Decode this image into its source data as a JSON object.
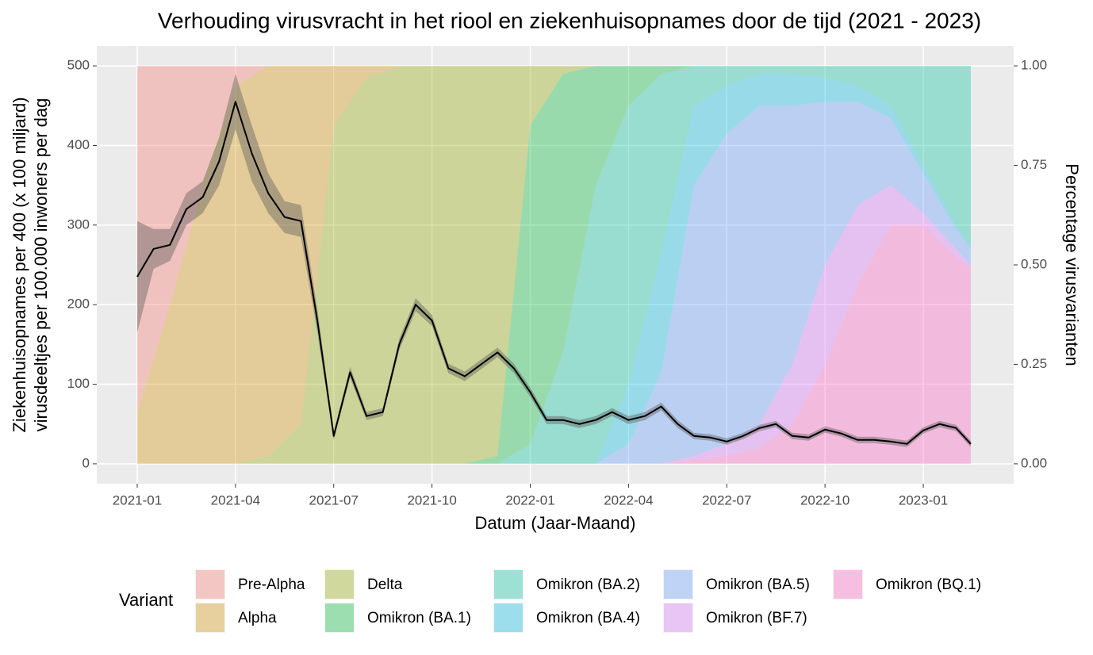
{
  "chart_data": [
    {
      "type": "stacked-area",
      "title": "Verhouding virusvracht in het riool en ziekenhuisopnames door de tijd (2021 - 2023)",
      "xlabel": "Datum (Jaar-Maand)",
      "ylabel": [
        "Ziekenhuisopnames per 400 (x 100 miljard)",
        "virusdeeltjes per 100.000 inwoners per dag"
      ],
      "y2label": "Percentage virusvarianten",
      "legend_title": "Variant",
      "xlim": [
        -1.235,
        26.76
      ],
      "xticks": [
        {
          "value": 0,
          "label": "2021-01"
        },
        {
          "value": 3,
          "label": "2021-04"
        },
        {
          "value": 6,
          "label": "2021-07"
        },
        {
          "value": 9,
          "label": "2021-10"
        },
        {
          "value": 12,
          "label": "2022-01"
        },
        {
          "value": 15,
          "label": "2022-04"
        },
        {
          "value": 18,
          "label": "2022-07"
        },
        {
          "value": 21,
          "label": "2022-10"
        },
        {
          "value": 24,
          "label": "2023-01"
        }
      ],
      "ylim": [
        -25,
        525
      ],
      "yticks": [
        0,
        100,
        200,
        300,
        400,
        500
      ],
      "y2lim": [
        -0.05,
        1.05
      ],
      "y2ticks": [
        {
          "value": 0,
          "label": "0.00"
        },
        {
          "value": 0.25,
          "label": "0.25"
        },
        {
          "value": 0.5,
          "label": "0.50"
        },
        {
          "value": 0.75,
          "label": "0.75"
        },
        {
          "value": 1,
          "label": "1.00"
        }
      ],
      "grid": true,
      "x": [
        0,
        1,
        2,
        3,
        4,
        5,
        6,
        7,
        8,
        9,
        10,
        11,
        12,
        13,
        14,
        15,
        16,
        17,
        18,
        19,
        20,
        21,
        22,
        23,
        24,
        25,
        25.45
      ],
      "series": [
        {
          "name": "Pre-Alpha",
          "color": "#F8766D",
          "axis": "y2",
          "values": [
            0.87,
            0.6,
            0.3,
            0.05,
            0,
            0,
            0,
            0,
            0,
            0,
            0,
            0,
            0,
            0,
            0,
            0,
            0,
            0,
            0,
            0,
            0,
            0,
            0,
            0,
            0,
            0,
            0
          ]
        },
        {
          "name": "Alpha",
          "color": "#D39200",
          "axis": "y2",
          "values": [
            0.13,
            0.4,
            0.7,
            0.95,
            0.98,
            0.9,
            0.15,
            0.03,
            0,
            0,
            0,
            0,
            0,
            0,
            0,
            0,
            0,
            0,
            0,
            0,
            0,
            0,
            0,
            0,
            0,
            0,
            0
          ]
        },
        {
          "name": "Delta",
          "color": "#93AA00",
          "axis": "y2",
          "values": [
            0,
            0,
            0,
            0,
            0.02,
            0.1,
            0.85,
            0.97,
            1,
            1,
            1,
            0.98,
            0.15,
            0.02,
            0,
            0,
            0,
            0,
            0,
            0,
            0,
            0,
            0,
            0,
            0,
            0,
            0
          ]
        },
        {
          "name": "Omikron (BA.1)",
          "color": "#00BA38",
          "axis": "y2",
          "values": [
            0,
            0,
            0,
            0,
            0,
            0,
            0,
            0,
            0,
            0,
            0,
            0.02,
            0.8,
            0.7,
            0.3,
            0.1,
            0.02,
            0,
            0,
            0,
            0,
            0,
            0,
            0,
            0,
            0,
            0
          ]
        },
        {
          "name": "Omikron (BA.2)",
          "color": "#00C19F",
          "axis": "y2",
          "values": [
            0,
            0,
            0,
            0,
            0,
            0,
            0,
            0,
            0,
            0,
            0,
            0,
            0.05,
            0.28,
            0.7,
            0.7,
            0.45,
            0.1,
            0.05,
            0.02,
            0.02,
            0.03,
            0.05,
            0.1,
            0.25,
            0.4,
            0.45
          ]
        },
        {
          "name": "Omikron (BA.4)",
          "color": "#00B9E3",
          "axis": "y2",
          "values": [
            0,
            0,
            0,
            0,
            0,
            0,
            0,
            0,
            0,
            0,
            0,
            0,
            0,
            0,
            0,
            0.15,
            0.3,
            0.2,
            0.12,
            0.08,
            0.08,
            0.06,
            0.04,
            0.03,
            0.02,
            0.01,
            0.01
          ]
        },
        {
          "name": "Omikron (BA.5)",
          "color": "#619CFF",
          "axis": "y2",
          "values": [
            0,
            0,
            0,
            0,
            0,
            0,
            0,
            0,
            0,
            0,
            0,
            0,
            0,
            0,
            0,
            0.05,
            0.23,
            0.68,
            0.78,
            0.8,
            0.65,
            0.41,
            0.26,
            0.17,
            0.1,
            0.05,
            0.04
          ]
        },
        {
          "name": "Omikron (BF.7)",
          "color": "#DB72FB",
          "axis": "y2",
          "values": [
            0,
            0,
            0,
            0,
            0,
            0,
            0,
            0,
            0,
            0,
            0,
            0,
            0,
            0,
            0,
            0,
            0,
            0.01,
            0.03,
            0.06,
            0.15,
            0.25,
            0.2,
            0.1,
            0.03,
            0.02,
            0.01
          ]
        },
        {
          "name": "Omikron (BQ.1)",
          "color": "#FF61C3",
          "axis": "y2",
          "values": [
            0,
            0,
            0,
            0,
            0,
            0,
            0,
            0,
            0,
            0,
            0,
            0,
            0,
            0,
            0,
            0,
            0,
            0.01,
            0.02,
            0.04,
            0.1,
            0.25,
            0.45,
            0.6,
            0.6,
            0.52,
            0.49
          ]
        }
      ]
    },
    {
      "type": "line",
      "color": "#000000",
      "ribbon_color": "#555555",
      "x": [
        0,
        0.5,
        1,
        1.5,
        2,
        2.5,
        3,
        3.5,
        4,
        4.5,
        5,
        5.5,
        6,
        6.5,
        7,
        7.5,
        8,
        8.5,
        9,
        9.5,
        10,
        10.5,
        11,
        11.5,
        12,
        12.5,
        13,
        13.5,
        14,
        14.5,
        15,
        15.5,
        16,
        16.5,
        17,
        17.5,
        18,
        18.5,
        19,
        19.5,
        20,
        20.5,
        21,
        21.5,
        22,
        22.5,
        23,
        23.5,
        24,
        24.5,
        25,
        25.45
      ],
      "values": [
        235,
        270,
        275,
        320,
        335,
        380,
        455,
        390,
        340,
        310,
        305,
        180,
        35,
        115,
        60,
        65,
        150,
        200,
        180,
        120,
        110,
        125,
        140,
        120,
        90,
        55,
        55,
        50,
        55,
        65,
        55,
        60,
        72,
        50,
        35,
        33,
        28,
        35,
        45,
        50,
        35,
        33,
        43,
        38,
        30,
        30,
        28,
        25,
        42,
        50,
        45,
        25
      ],
      "lower": [
        165,
        245,
        255,
        300,
        315,
        350,
        420,
        355,
        315,
        290,
        285,
        165,
        30,
        108,
        55,
        60,
        143,
        192,
        173,
        114,
        104,
        119,
        134,
        114,
        84,
        50,
        50,
        45,
        50,
        60,
        50,
        55,
        67,
        45,
        31,
        29,
        24,
        31,
        41,
        46,
        31,
        29,
        39,
        34,
        26,
        26,
        24,
        21,
        38,
        46,
        41,
        21
      ],
      "upper": [
        305,
        295,
        295,
        340,
        355,
        410,
        490,
        425,
        365,
        330,
        325,
        195,
        40,
        122,
        65,
        70,
        157,
        208,
        187,
        126,
        116,
        131,
        146,
        126,
        96,
        60,
        60,
        55,
        60,
        70,
        60,
        65,
        77,
        55,
        39,
        37,
        32,
        39,
        49,
        54,
        39,
        37,
        47,
        42,
        34,
        34,
        32,
        29,
        46,
        54,
        49,
        29
      ]
    }
  ]
}
